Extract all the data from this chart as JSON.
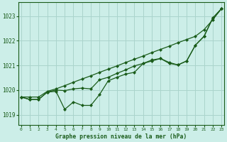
{
  "background_color": "#cceee8",
  "grid_color": "#aad4cc",
  "line_color": "#1a5c1a",
  "text_color": "#1a5c1a",
  "xlabel": "Graphe pression niveau de la mer (hPa)",
  "ylim": [
    1018.6,
    1023.55
  ],
  "xlim": [
    -0.3,
    23.3
  ],
  "yticks": [
    1019,
    1020,
    1021,
    1022,
    1023
  ],
  "xticks": [
    0,
    1,
    2,
    3,
    4,
    5,
    6,
    7,
    8,
    9,
    10,
    11,
    12,
    13,
    14,
    15,
    16,
    17,
    18,
    19,
    20,
    21,
    22,
    23
  ],
  "series_upper": [
    1019.72,
    1019.72,
    1019.72,
    1019.95,
    1020.05,
    1020.18,
    1020.32,
    1020.45,
    1020.58,
    1020.72,
    1020.85,
    1020.98,
    1021.12,
    1021.25,
    1021.38,
    1021.52,
    1021.65,
    1021.78,
    1021.92,
    1022.05,
    1022.18,
    1022.45,
    1022.85,
    1023.3
  ],
  "series_mid": [
    1019.72,
    1019.62,
    1019.62,
    1019.92,
    1020.0,
    1019.98,
    1020.05,
    1020.08,
    1020.05,
    1020.42,
    1020.52,
    1020.68,
    1020.82,
    1020.98,
    1021.08,
    1021.18,
    1021.28,
    1021.08,
    1021.02,
    1021.18,
    1021.82,
    1022.18,
    1022.92,
    1023.3
  ],
  "series_low": [
    1019.72,
    1019.62,
    1019.62,
    1019.92,
    1019.95,
    1019.22,
    1019.52,
    1019.38,
    1019.38,
    1019.82,
    1020.38,
    1020.52,
    1020.65,
    1020.72,
    1021.08,
    1021.22,
    1021.28,
    1021.12,
    1021.02,
    1021.18,
    1021.82,
    1022.18,
    1022.92,
    1023.3
  ]
}
